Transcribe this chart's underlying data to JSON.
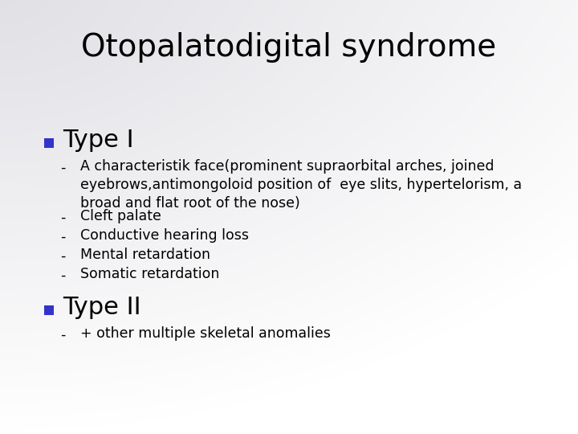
{
  "title": "Otopalatodigital syndrome",
  "title_fontsize": 28,
  "title_color": "#000000",
  "bullet_color": "#3333cc",
  "sections": [
    {
      "type": "heading",
      "text": "Type I",
      "fontsize": 22,
      "color": "#000000"
    },
    {
      "type": "item",
      "text": "A characteristik face(prominent supraorbital arches, joined\neyebrows,antimongoloid position of  eye slits, hypertelorism, a\nbroad and flat root of the nose)",
      "fontsize": 12.5,
      "color": "#000000",
      "nlines": 3
    },
    {
      "type": "item",
      "text": "Cleft palate",
      "fontsize": 12.5,
      "color": "#000000",
      "nlines": 1
    },
    {
      "type": "item",
      "text": "Conductive hearing loss",
      "fontsize": 12.5,
      "color": "#000000",
      "nlines": 1
    },
    {
      "type": "item",
      "text": "Mental retardation",
      "fontsize": 12.5,
      "color": "#000000",
      "nlines": 1
    },
    {
      "type": "item",
      "text": "Somatic retardation",
      "fontsize": 12.5,
      "color": "#000000",
      "nlines": 1
    },
    {
      "type": "heading",
      "text": "Type II",
      "fontsize": 22,
      "color": "#000000"
    },
    {
      "type": "item",
      "text": "+ other multiple skeletal anomalies",
      "fontsize": 12.5,
      "color": "#000000",
      "nlines": 1
    }
  ],
  "bg_gray_color": [
    0.88,
    0.88,
    0.9
  ],
  "bg_white_color": [
    1.0,
    1.0,
    1.0
  ]
}
